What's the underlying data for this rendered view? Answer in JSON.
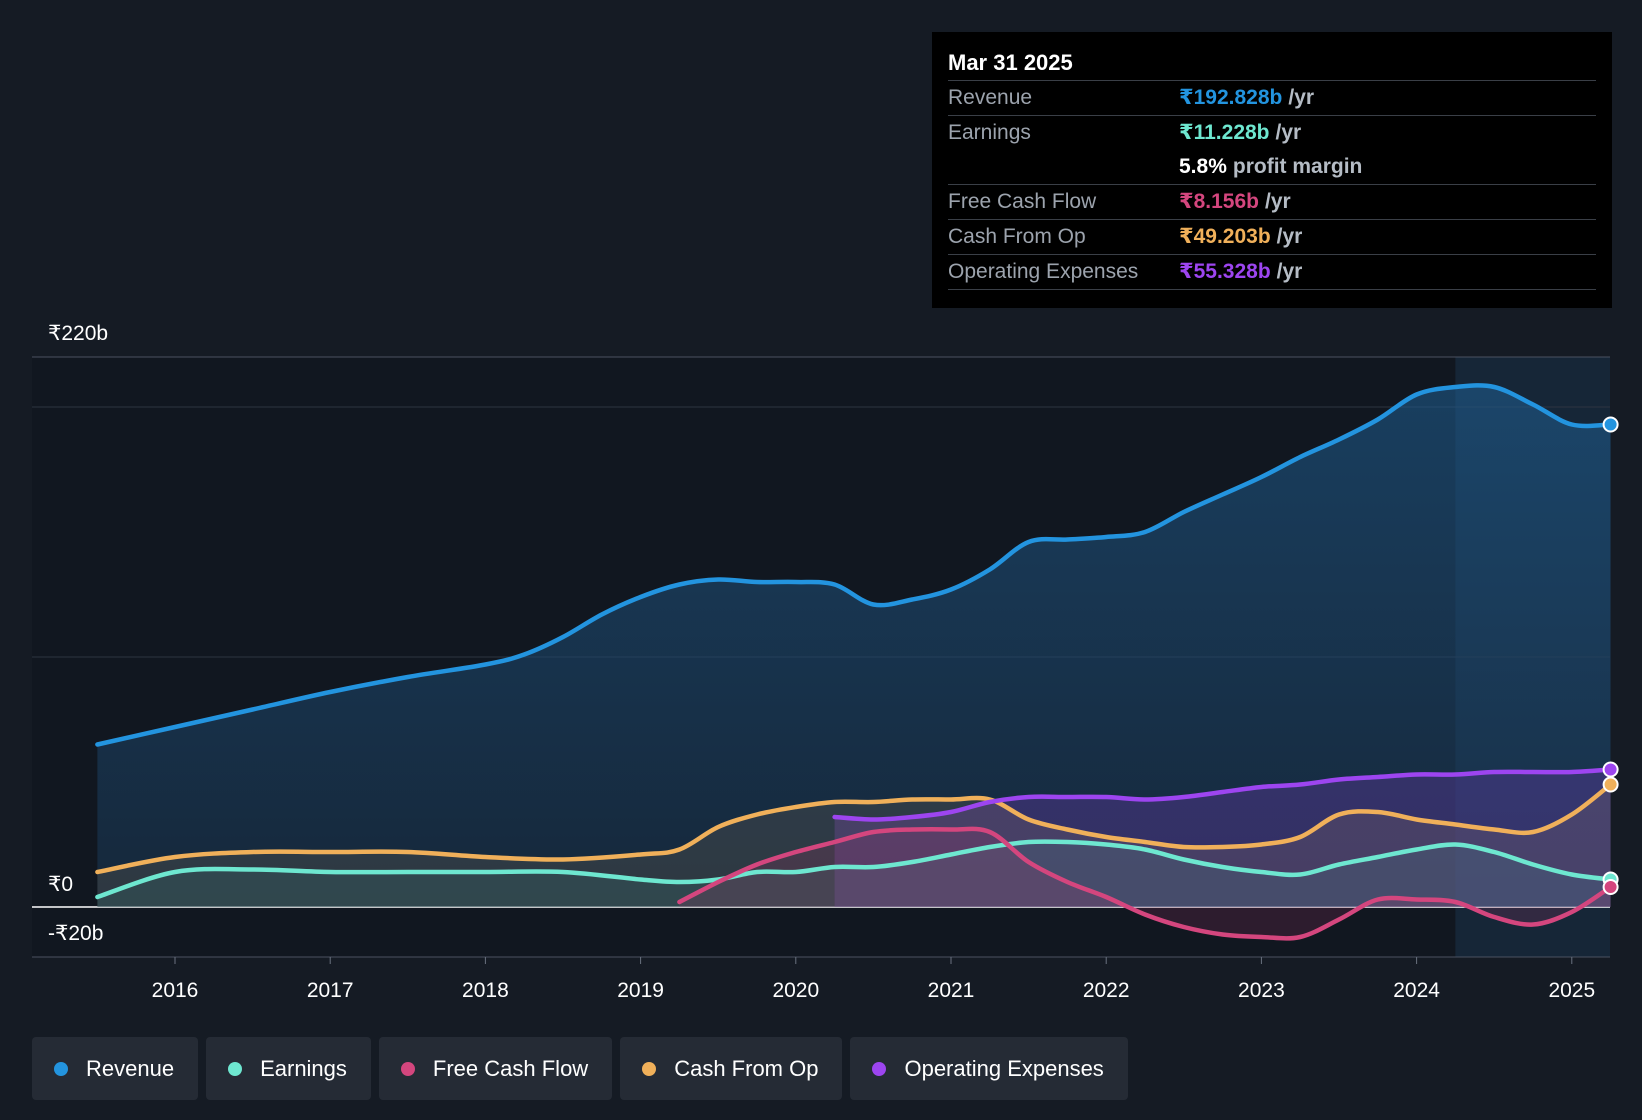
{
  "tooltip": {
    "date": "Mar 31 2025",
    "rows": [
      {
        "label": "Revenue",
        "value": "₹192.828b",
        "unit": "/yr",
        "color": "#2394df"
      },
      {
        "label": "Earnings",
        "value": "₹11.228b",
        "unit": "/yr",
        "color": "#6ee7d0"
      },
      {
        "label": "",
        "value": "5.8%",
        "unit": "profit margin",
        "color": "#ffffff"
      },
      {
        "label": "Free Cash Flow",
        "value": "₹8.156b",
        "unit": "/yr",
        "color": "#d4467e"
      },
      {
        "label": "Cash From Op",
        "value": "₹49.203b",
        "unit": "/yr",
        "color": "#f0b05a"
      },
      {
        "label": "Operating Expenses",
        "value": "₹55.328b",
        "unit": "/yr",
        "color": "#9d45f0"
      }
    ]
  },
  "legend": [
    {
      "label": "Revenue",
      "color": "#2394df"
    },
    {
      "label": "Earnings",
      "color": "#6ee7d0"
    },
    {
      "label": "Free Cash Flow",
      "color": "#d4467e"
    },
    {
      "label": "Cash From Op",
      "color": "#f0b05a"
    },
    {
      "label": "Operating Expenses",
      "color": "#9d45f0"
    }
  ],
  "chart_data": {
    "type": "line",
    "title": "",
    "xlabel": "",
    "ylabel": "",
    "y_axis_labels": [
      "₹220b",
      "₹0",
      "-₹20b"
    ],
    "ylim": [
      -20,
      220
    ],
    "xlim": [
      2015.0,
      2025.25
    ],
    "x_ticks": [
      2016,
      2017,
      2018,
      2019,
      2020,
      2021,
      2022,
      2023,
      2024,
      2025
    ],
    "x_tick_labels": [
      "2016",
      "2017",
      "2018",
      "2019",
      "2020",
      "2021",
      "2022",
      "2023",
      "2024",
      "2025"
    ],
    "highlight_start": 2024.25,
    "series": [
      {
        "name": "Revenue",
        "color": "#2394df",
        "x": [
          2015.5,
          2016.0,
          2016.5,
          2017.0,
          2017.5,
          2018.0,
          2018.25,
          2018.5,
          2018.75,
          2019.0,
          2019.25,
          2019.5,
          2019.75,
          2020.0,
          2020.25,
          2020.5,
          2020.75,
          2021.0,
          2021.25,
          2021.5,
          2021.75,
          2022.0,
          2022.25,
          2022.5,
          2022.75,
          2023.0,
          2023.25,
          2023.5,
          2023.75,
          2024.0,
          2024.25,
          2024.5,
          2024.75,
          2025.0,
          2025.25
        ],
        "values": [
          65,
          72,
          79,
          86,
          92,
          97,
          101,
          108,
          117,
          124,
          129,
          131,
          130,
          130,
          129,
          121,
          123,
          127,
          135,
          146,
          147,
          148,
          150,
          158,
          165,
          172,
          180,
          187,
          195,
          205,
          208,
          208,
          201,
          193,
          193
        ]
      },
      {
        "name": "Earnings",
        "color": "#6ee7d0",
        "x": [
          2015.5,
          2016.0,
          2016.5,
          2017.0,
          2017.5,
          2018.0,
          2018.5,
          2019.0,
          2019.25,
          2019.5,
          2019.75,
          2020.0,
          2020.25,
          2020.5,
          2020.75,
          2021.0,
          2021.25,
          2021.5,
          2021.75,
          2022.0,
          2022.25,
          2022.5,
          2022.75,
          2023.0,
          2023.25,
          2023.5,
          2023.75,
          2024.0,
          2024.25,
          2024.5,
          2024.75,
          2025.0,
          2025.25
        ],
        "values": [
          4,
          14,
          15,
          14,
          14,
          14,
          14,
          11,
          10,
          11,
          14,
          14,
          16,
          16,
          18,
          21,
          24,
          26,
          26,
          25,
          23,
          19,
          16,
          14,
          13,
          17,
          20,
          23,
          25,
          22,
          17,
          13,
          11
        ]
      },
      {
        "name": "Free Cash Flow",
        "color": "#d4467e",
        "x": [
          2019.25,
          2019.5,
          2019.75,
          2020.0,
          2020.25,
          2020.5,
          2020.75,
          2021.0,
          2021.25,
          2021.5,
          2021.75,
          2022.0,
          2022.25,
          2022.5,
          2022.75,
          2023.0,
          2023.25,
          2023.5,
          2023.75,
          2024.0,
          2024.25,
          2024.5,
          2024.75,
          2025.0,
          2025.25
        ],
        "values": [
          2,
          10,
          17,
          22,
          26,
          30,
          31,
          31,
          30,
          18,
          10,
          4,
          -3,
          -8,
          -11,
          -12,
          -12,
          -5,
          3,
          3,
          2,
          -4,
          -7,
          -2,
          8
        ]
      },
      {
        "name": "Cash From Op",
        "color": "#f0b05a",
        "x": [
          2015.5,
          2016.0,
          2016.5,
          2017.0,
          2017.5,
          2018.0,
          2018.5,
          2019.0,
          2019.25,
          2019.5,
          2019.75,
          2020.0,
          2020.25,
          2020.5,
          2020.75,
          2021.0,
          2021.25,
          2021.5,
          2021.75,
          2022.0,
          2022.25,
          2022.5,
          2022.75,
          2023.0,
          2023.25,
          2023.5,
          2023.75,
          2024.0,
          2024.25,
          2024.5,
          2024.75,
          2025.0,
          2025.25
        ],
        "values": [
          14,
          20,
          22,
          22,
          22,
          20,
          19,
          21,
          23,
          32,
          37,
          40,
          42,
          42,
          43,
          43,
          43,
          35,
          31,
          28,
          26,
          24,
          24,
          25,
          28,
          37,
          38,
          35,
          33,
          31,
          30,
          37,
          49
        ]
      },
      {
        "name": "Operating Expenses",
        "color": "#9d45f0",
        "x": [
          2020.25,
          2020.5,
          2020.75,
          2021.0,
          2021.25,
          2021.5,
          2021.75,
          2022.0,
          2022.25,
          2022.5,
          2022.75,
          2023.0,
          2023.25,
          2023.5,
          2023.75,
          2024.0,
          2024.25,
          2024.5,
          2024.75,
          2025.0,
          2025.25
        ],
        "values": [
          36,
          35,
          36,
          38,
          42,
          44,
          44,
          44,
          43,
          44,
          46,
          48,
          49,
          51,
          52,
          53,
          53,
          54,
          54,
          54,
          55
        ]
      }
    ]
  }
}
